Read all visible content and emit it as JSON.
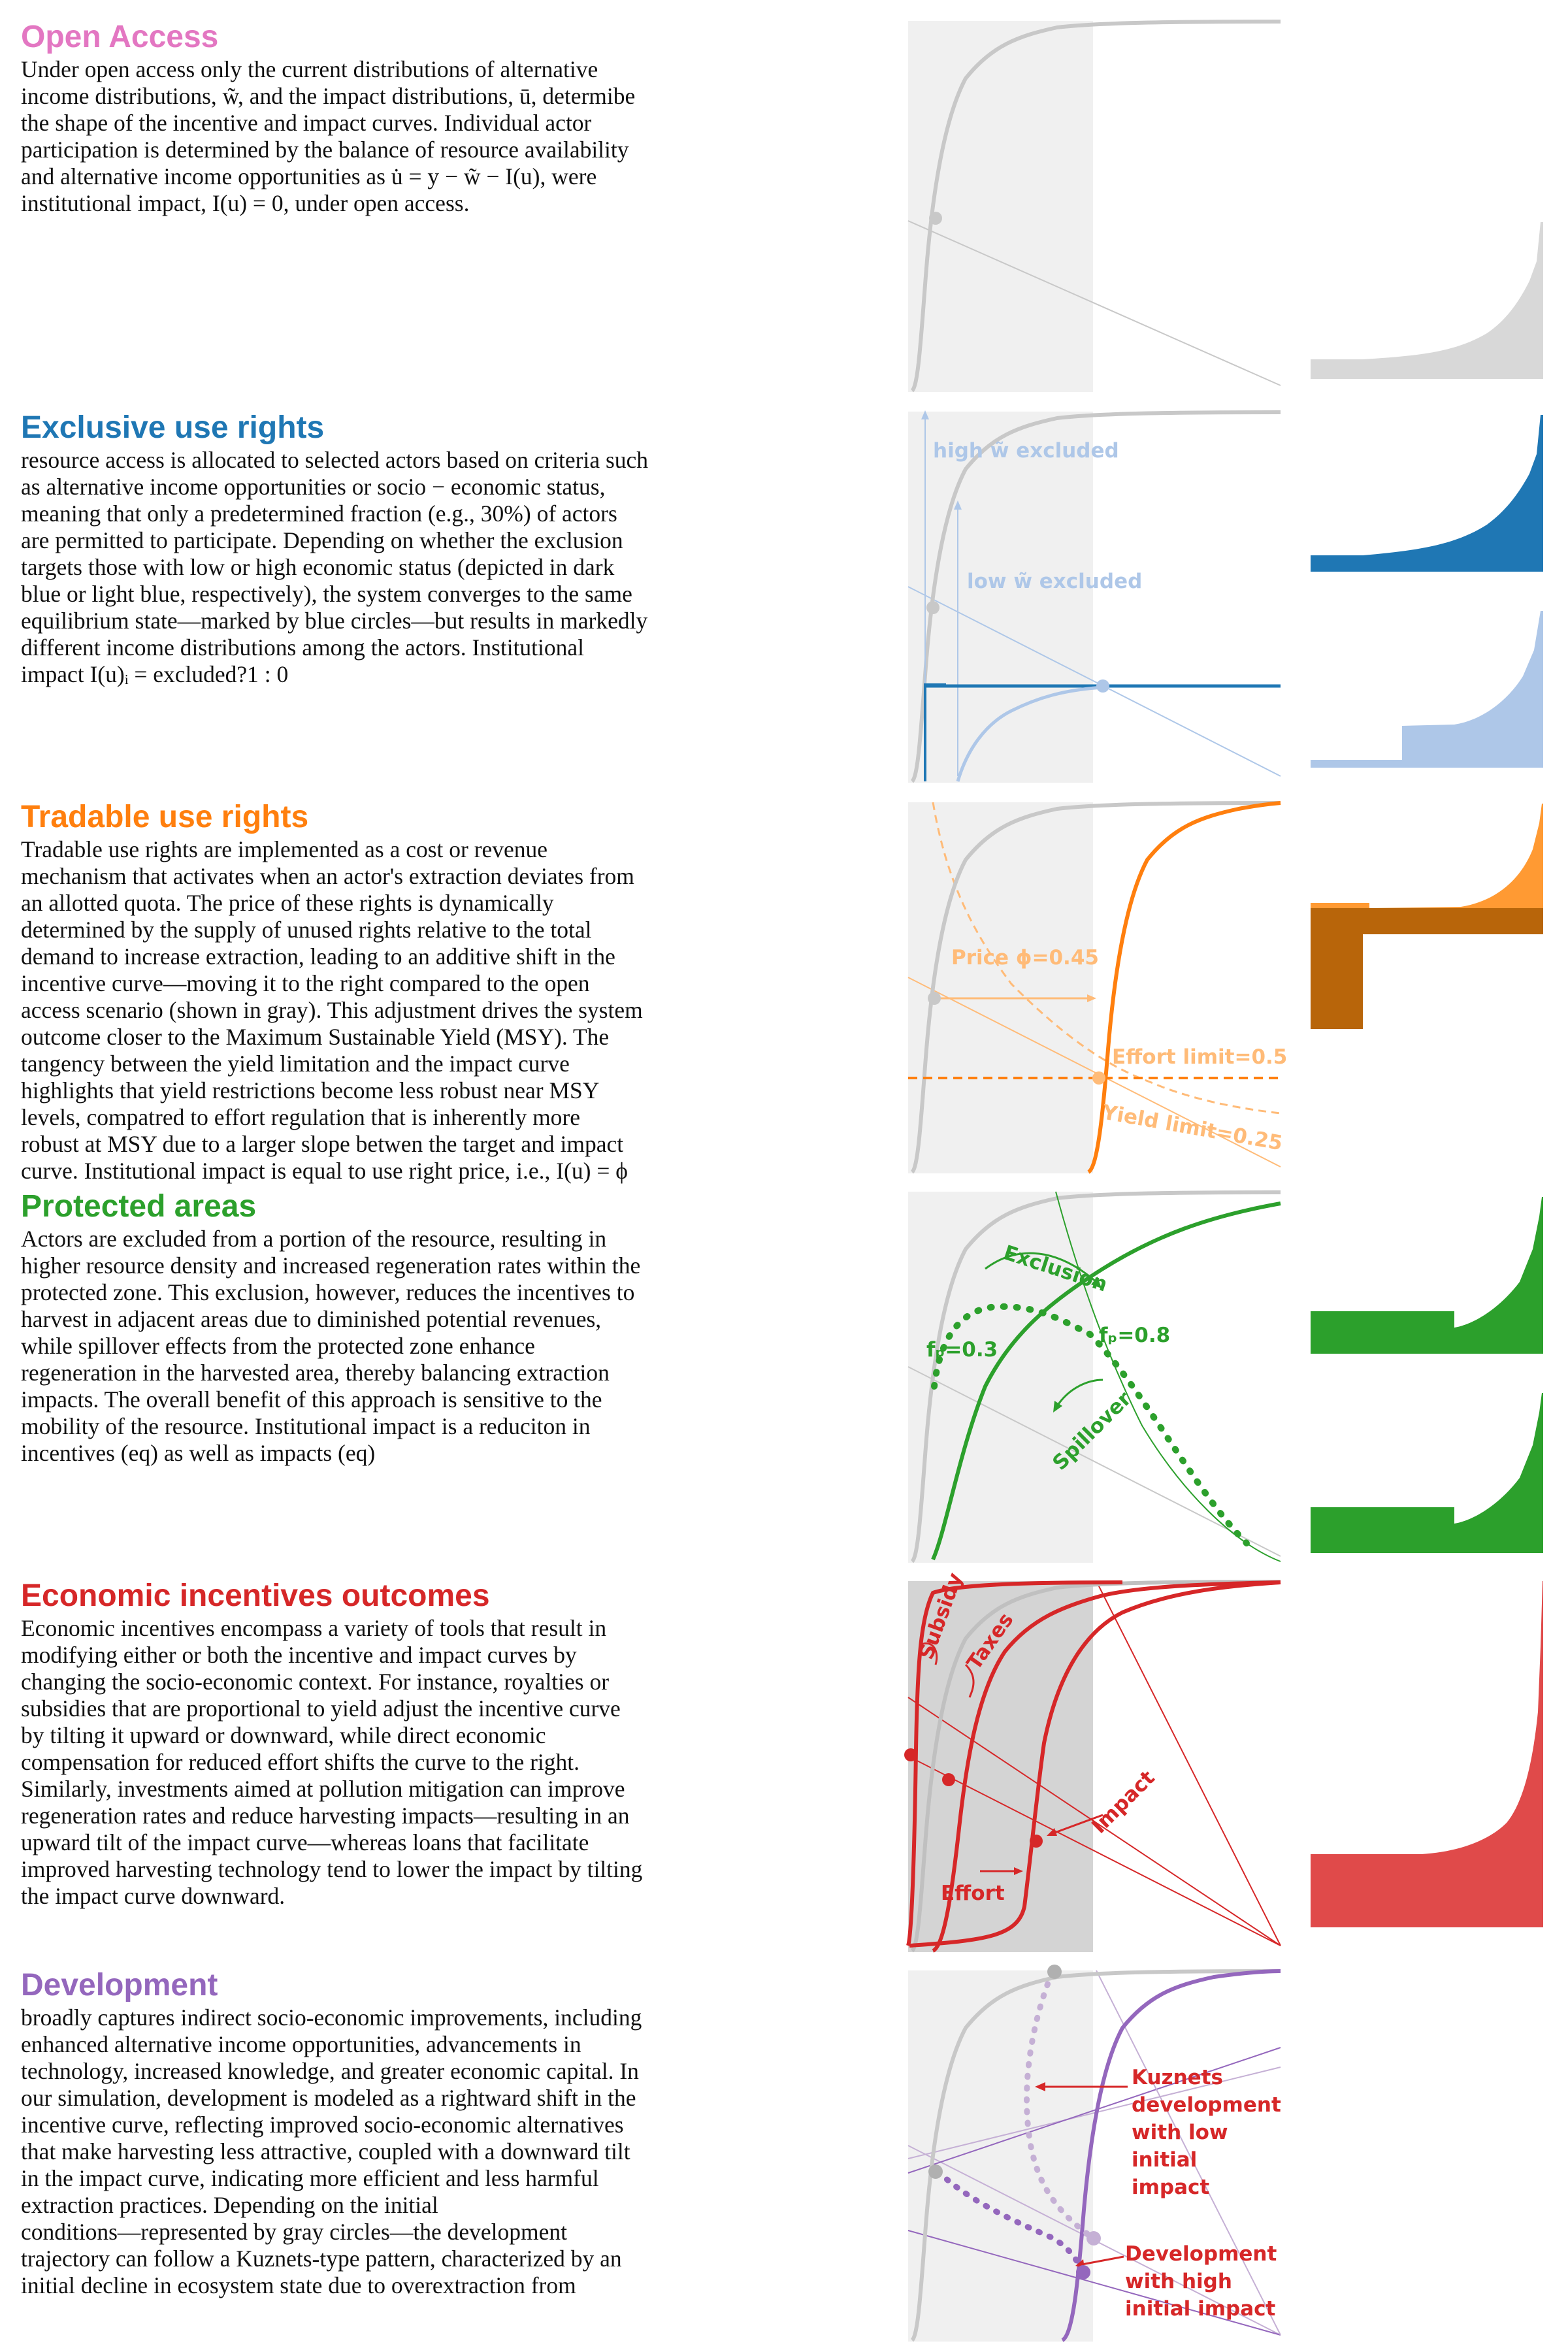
{
  "sections": [
    {
      "id": "open-access",
      "title": "Open Access",
      "color": "#e377c2",
      "body": "Under open access only the current distributions of alternative\nincome distributions, w̃, and the impact distributions, ū, determibe\nthe shape of the incentive and impact curves. Individual actor\nparticipation is determined by the balance of resource availability\nand alternative income opportunities as u̇ = y − w̃ − I(u), were\ninstitutional impact, I(u) = 0, under open access."
    },
    {
      "id": "exclusive-use-rights",
      "title": "Exclusive use rights",
      "color": "#1f77b4",
      "body": "resource access is allocated to selected actors based on criteria such\nas alternative income opportunities or socio − economic status,\nmeaning that only a predetermined fraction (e.g., 30%) of actors\nare permitted to participate. Depending on whether the exclusion\ntargets those with low or high economic status (depicted in dark\nblue or light blue, respectively), the system converges to the same\nequilibrium state—marked by blue circles—but results in markedly\ndifferent income distributions among the actors. Institutional\nimpact  I(u)ᵢ = excluded?1 : 0"
    },
    {
      "id": "tradable-use-rights",
      "title": "Tradable use rights",
      "color": "#ff7f0e",
      "body": "Tradable use rights are implemented as a cost or revenue\nmechanism that activates when an actor's extraction deviates from\nan allotted quota. The price of these rights is dynamically\ndetermined by the supply of unused rights relative to the total\ndemand to increase extraction, leading to an additive shift in the\nincentive curve—moving it to the right compared to the open\naccess scenario (shown in gray). This adjustment drives the system\noutcome closer to the Maximum Sustainable Yield (MSY). The\ntangency between the yield limitation and the impact curve\nhighlights that yield restrictions become less robust near MSY\nlevels, compatred to effort regulation that is inherently more\nrobust at MSY due to a larger slope betwen the target and impact\ncurve. Institutional impact is equal to use right price, i.e., I(u) = ϕ"
    },
    {
      "id": "protected-areas",
      "title": "Protected areas",
      "color": "#2ca02c",
      "body": "Actors are excluded from a portion of the resource, resulting in\nhigher resource density and increased regeneration rates within the\nprotected zone. This exclusion, however, reduces the incentives to\nharvest in adjacent areas due to diminished potential revenues,\nwhile spillover effects from the protected zone enhance\nregeneration in the harvested area, thereby balancing extraction\nimpacts. The overall benefit of this approach is sensitive to the\nmobility of the resource. Institutional impact is a reduciton in\nincentives (eq) as well as impacts (eq)"
    },
    {
      "id": "economic-incentives",
      "title": "Economic incentives outcomes",
      "color": "#d62728",
      "body": "Economic incentives encompass a variety of tools that result in\nmodifying either or both the incentive and impact curves by\nchanging the socio-economic context. For instance, royalties or\nsubsidies that are proportional to yield adjust the incentive curve\nby tilting it upward or downward, while direct economic\ncompensation for reduced effort shifts the curve to the right.\nSimilarly, investments aimed at pollution mitigation can improve\nregeneration rates and reduce harvesting impacts—resulting in an\nupward tilt of the impact curve—whereas loans that facilitate\nimproved harvesting technology tend to lower the impact by tilting\nthe impact curve downward."
    },
    {
      "id": "development",
      "title": "Development",
      "color": "#9467bd",
      "body": "broadly captures indirect socio-economic improvements, including\nenhanced alternative income opportunities, advancements in\ntechnology, increased knowledge, and greater economic capital. In\nour simulation, development is modeled as a rightward shift in the\nincentive curve, reflecting improved socio-economic alternatives\nthat make harvesting less attractive, coupled with a downward tilt\nin the impact curve, indicating more efficient and less harmful\nextraction practices. Depending on the initial\nconditions—represented by gray circles—the development\ntrajectory can follow a Kuznets-type pattern, characterized by an\ninitial decline in ecosystem state due to overextraction from"
    }
  ],
  "annotations": {
    "high_excluded": "high w̃ excluded",
    "low_excluded": "low w̃ excluded",
    "price": "Price ϕ=0.45",
    "effort_limit": "Effort limit=0.5",
    "yield_limit": "Yield limit=0.25",
    "exclusion": "Exclusion",
    "fp_low": "fₚ=0.3",
    "fp_high": "fₚ=0.8",
    "spillover": "Spillover",
    "subsidy": "Subsidy",
    "taxes": "Taxes",
    "impact": "Impact",
    "effort": "Effort",
    "kuznets_line1": "Kuznets",
    "kuznets_line2": "development",
    "kuznets_line3": "with low",
    "kuznets_line4": "initial",
    "kuznets_line5": "impact",
    "dev_high_line1": "Development",
    "dev_high_line2": "with high",
    "dev_high_line3": "initial impact"
  },
  "colors": {
    "gray": "#c8c8c8",
    "shade": "#f0f0f0",
    "blue": "#1f77b4",
    "light_blue": "#aec7e8",
    "orange": "#ff7f0e",
    "light_orange": "#ffbb78",
    "brown": "#b8650a",
    "green": "#2ca02c",
    "red": "#d62728",
    "purple": "#9467bd",
    "light_purple": "#c5b0d5"
  }
}
